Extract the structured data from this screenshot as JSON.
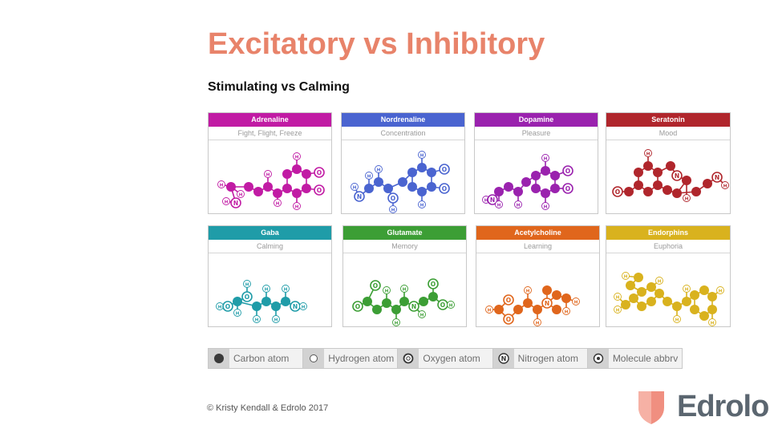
{
  "title": "Excitatory vs Inhibitory",
  "subtitle": "Stimulating vs Calming",
  "cards": [
    {
      "name": "Adrenaline",
      "effect": "Fight, Flight, Freeze",
      "color": "#c11ba4"
    },
    {
      "name": "Nordrenaline",
      "effect": "Concentration",
      "color": "#4a64d0"
    },
    {
      "name": "Dopamine",
      "effect": "Pleasure",
      "color": "#9a22ae"
    },
    {
      "name": "Seratonin",
      "effect": "Mood",
      "color": "#b0262c"
    },
    {
      "name": "Gaba",
      "effect": "Calming",
      "color": "#1f9ca8"
    },
    {
      "name": "Glutamate",
      "effect": "Memory",
      "color": "#3c9e35"
    },
    {
      "name": "Acetylcholine",
      "effect": "Learning",
      "color": "#e0661c"
    },
    {
      "name": "Endorphins",
      "effect": "Euphoria",
      "color": "#d9b21e"
    }
  ],
  "atom_labels": {
    "hydrogen": "H",
    "oxygen": "O",
    "nitrogen": "N"
  },
  "legend": [
    {
      "icon": "carbon-atom-icon",
      "label": "Carbon atom"
    },
    {
      "icon": "hydrogen-atom-icon",
      "label": "Hydrogen atom"
    },
    {
      "icon": "oxygen-atom-icon",
      "label": "Oxygen atom"
    },
    {
      "icon": "nitrogen-atom-icon",
      "label": "Nitrogen atom"
    },
    {
      "icon": "molecule-abbrv-icon",
      "label": "Molecule abbrv"
    }
  ],
  "copyright": "© Kristy Kendall & Edrolo 2017",
  "logo": {
    "text": "Edrolo",
    "color": "#5b6670",
    "shield_color": "#f08f80"
  }
}
